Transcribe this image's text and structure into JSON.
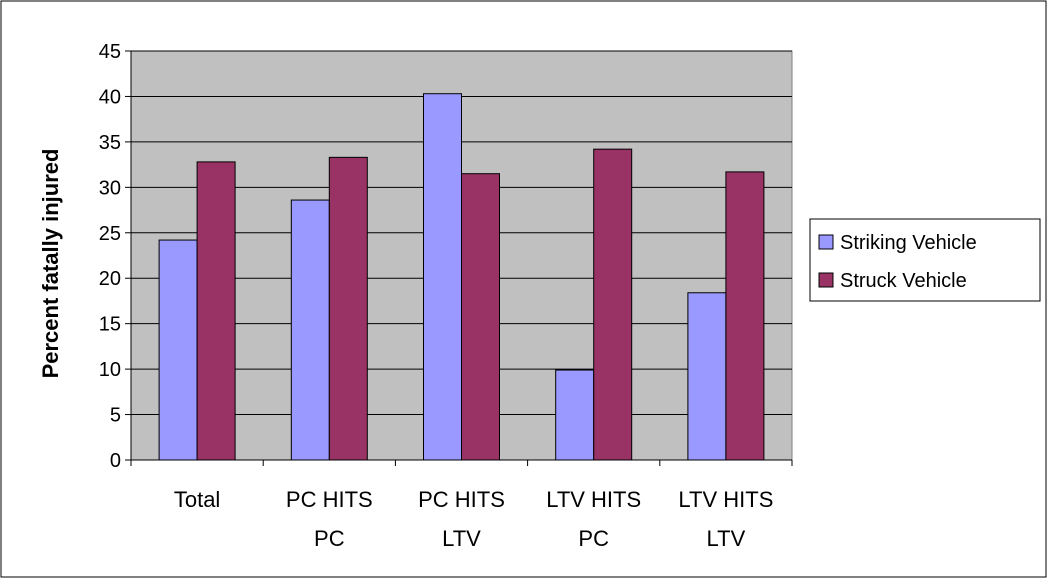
{
  "chart_data": {
    "type": "bar",
    "categories": [
      [
        "Total"
      ],
      [
        "PC HITS",
        "PC"
      ],
      [
        "PC HITS",
        "LTV"
      ],
      [
        "LTV HITS",
        "PC"
      ],
      [
        "LTV HITS",
        "LTV"
      ]
    ],
    "series": [
      {
        "name": "Striking Vehicle",
        "values": [
          24.2,
          28.6,
          40.3,
          9.9,
          18.4
        ],
        "color": "#9999ff"
      },
      {
        "name": "Struck Vehicle",
        "values": [
          32.8,
          33.3,
          31.5,
          34.2,
          31.7
        ],
        "color": "#993366"
      }
    ],
    "title": "",
    "xlabel": "",
    "ylabel": "Percent fatally injured",
    "ylim": [
      0,
      45
    ],
    "yticks": [
      0,
      5,
      10,
      15,
      20,
      25,
      30,
      35,
      40,
      45
    ],
    "grid": true,
    "plot_background": "#c0c0c0",
    "legend": "right"
  }
}
